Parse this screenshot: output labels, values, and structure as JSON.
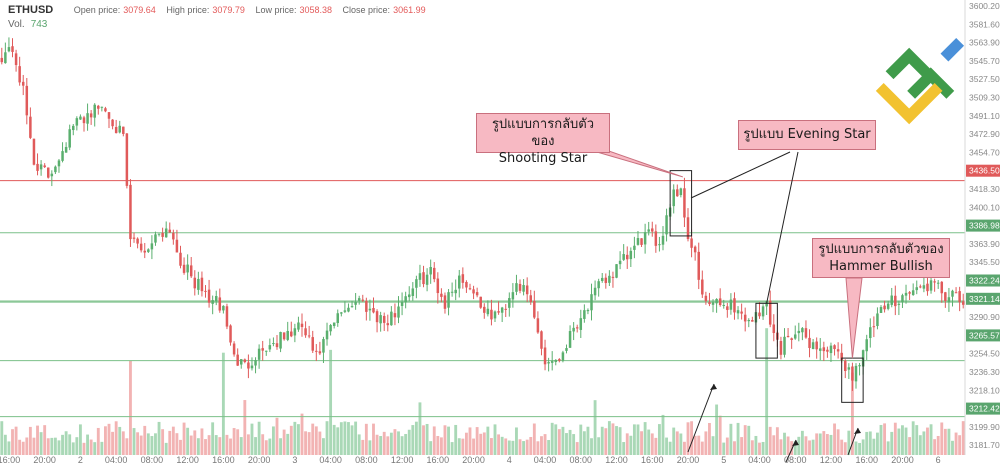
{
  "header": {
    "symbol": "ETHUSD",
    "open_label": "Open price:",
    "open_value": "3079.64",
    "high_label": "High price:",
    "high_value": "3079.79",
    "low_label": "Low price:",
    "low_value": "3058.38",
    "close_label": "Close price:",
    "close_value": "3061.99",
    "vol_label": "Vol.",
    "vol_value": "743"
  },
  "annotations": {
    "shooting_star": [
      "รูปแบบการกลับตัวของ",
      "Shooting Star"
    ],
    "evening_star": "รูปแบบ Evening Star",
    "hammer": [
      "รูปแบบการกลับตัวของ",
      "Hammer Bullish"
    ]
  },
  "colors": {
    "up": "#5aaf6e",
    "down": "#e05a5a",
    "vol_up": "#a9d8b6",
    "vol_down": "#f2b3b3",
    "red_line": "#e05a5a",
    "green_line": "#7cc08a"
  },
  "chart_data": {
    "type": "candlestick",
    "y_ticks": [
      "3600.20",
      "3581.60",
      "3563.90",
      "3545.70",
      "3527.50",
      "3509.30",
      "3491.10",
      "3472.90",
      "3454.70",
      "3436.50",
      "3418.30",
      "3400.10",
      "3386.98",
      "3363.90",
      "3345.50",
      "3322.24",
      "3321.14",
      "3290.90",
      "3265.57",
      "3254.50",
      "3236.30",
      "3218.10",
      "3212.42",
      "3199.90",
      "3181.70"
    ],
    "x_ticks": [
      {
        "label": "16:00",
        "bar": 2
      },
      {
        "label": "20:00",
        "bar": 12
      },
      {
        "label": "2",
        "bar": 22
      },
      {
        "label": "04:00",
        "bar": 32
      },
      {
        "label": "08:00",
        "bar": 42
      },
      {
        "label": "12:00",
        "bar": 52
      },
      {
        "label": "16:00",
        "bar": 62
      },
      {
        "label": "20:00",
        "bar": 72
      },
      {
        "label": "3",
        "bar": 82
      },
      {
        "label": "04:00",
        "bar": 92
      },
      {
        "label": "08:00",
        "bar": 102
      },
      {
        "label": "12:00",
        "bar": 112
      },
      {
        "label": "16:00",
        "bar": 122
      },
      {
        "label": "20:00",
        "bar": 132
      },
      {
        "label": "4",
        "bar": 142
      },
      {
        "label": "04:00",
        "bar": 152
      },
      {
        "label": "08:00",
        "bar": 162
      },
      {
        "label": "12:00",
        "bar": 172
      },
      {
        "label": "16:00",
        "bar": 182
      },
      {
        "label": "20:00",
        "bar": 192
      },
      {
        "label": "5",
        "bar": 202
      },
      {
        "label": "04:00",
        "bar": 212
      },
      {
        "label": "08:00",
        "bar": 222
      },
      {
        "label": "12:00",
        "bar": 232
      },
      {
        "label": "16:00",
        "bar": 242
      },
      {
        "label": "20:00",
        "bar": 252
      },
      {
        "label": "6",
        "bar": 262
      }
    ],
    "horizontal_lines": [
      {
        "value": 3436.5,
        "label": "3436.50",
        "color": "red"
      },
      {
        "value": 3386.98,
        "label": "3386.98",
        "color": "green"
      },
      {
        "value": 3322.24,
        "label": "3322.24",
        "color": "green"
      },
      {
        "value": 3321.14,
        "label": "3321.14",
        "color": "green"
      },
      {
        "value": 3265.57,
        "label": "3265.57",
        "color": "green"
      },
      {
        "value": 3212.42,
        "label": "3212.42",
        "color": "green"
      }
    ],
    "y_range": [
      3176,
      3608
    ],
    "bars": 270,
    "close_path": [
      [
        0,
        3556
      ],
      [
        3,
        3562
      ],
      [
        6,
        3520
      ],
      [
        9,
        3455
      ],
      [
        13,
        3440
      ],
      [
        16,
        3460
      ],
      [
        20,
        3488
      ],
      [
        24,
        3500
      ],
      [
        28,
        3507
      ],
      [
        31,
        3495
      ],
      [
        34,
        3475
      ],
      [
        36,
        3380
      ],
      [
        40,
        3370
      ],
      [
        44,
        3388
      ],
      [
        47,
        3392
      ],
      [
        50,
        3360
      ],
      [
        54,
        3340
      ],
      [
        58,
        3325
      ],
      [
        62,
        3315
      ],
      [
        65,
        3268
      ],
      [
        68,
        3260
      ],
      [
        72,
        3275
      ],
      [
        76,
        3282
      ],
      [
        80,
        3290
      ],
      [
        84,
        3298
      ],
      [
        88,
        3268
      ],
      [
        92,
        3296
      ],
      [
        96,
        3316
      ],
      [
        100,
        3324
      ],
      [
        104,
        3312
      ],
      [
        108,
        3300
      ],
      [
        112,
        3324
      ],
      [
        116,
        3340
      ],
      [
        120,
        3350
      ],
      [
        124,
        3320
      ],
      [
        128,
        3345
      ],
      [
        132,
        3332
      ],
      [
        136,
        3308
      ],
      [
        140,
        3312
      ],
      [
        144,
        3342
      ],
      [
        148,
        3320
      ],
      [
        152,
        3265
      ],
      [
        156,
        3268
      ],
      [
        160,
        3298
      ],
      [
        164,
        3318
      ],
      [
        168,
        3340
      ],
      [
        172,
        3352
      ],
      [
        176,
        3368
      ],
      [
        180,
        3385
      ],
      [
        184,
        3378
      ],
      [
        188,
        3428
      ],
      [
        190,
        3425
      ],
      [
        192,
        3385
      ],
      [
        194,
        3365
      ],
      [
        196,
        3322
      ],
      [
        200,
        3318
      ],
      [
        204,
        3320
      ],
      [
        208,
        3305
      ],
      [
        212,
        3308
      ],
      [
        214,
        3322
      ],
      [
        216,
        3290
      ],
      [
        218,
        3276
      ],
      [
        220,
        3292
      ],
      [
        224,
        3290
      ],
      [
        228,
        3278
      ],
      [
        232,
        3275
      ],
      [
        236,
        3262
      ],
      [
        238,
        3250
      ],
      [
        240,
        3268
      ],
      [
        244,
        3300
      ],
      [
        248,
        3320
      ],
      [
        252,
        3328
      ],
      [
        256,
        3333
      ],
      [
        260,
        3338
      ],
      [
        264,
        3328
      ],
      [
        269,
        3321
      ]
    ],
    "shooting_star_box": {
      "bars": [
        188,
        192
      ],
      "y": [
        3384,
        3446
      ]
    },
    "evening_star_box": {
      "bars": [
        212,
        216
      ],
      "y": [
        3268,
        3320
      ]
    },
    "hammer_box": {
      "bars": [
        236,
        240
      ],
      "y": [
        3226,
        3268
      ]
    }
  }
}
